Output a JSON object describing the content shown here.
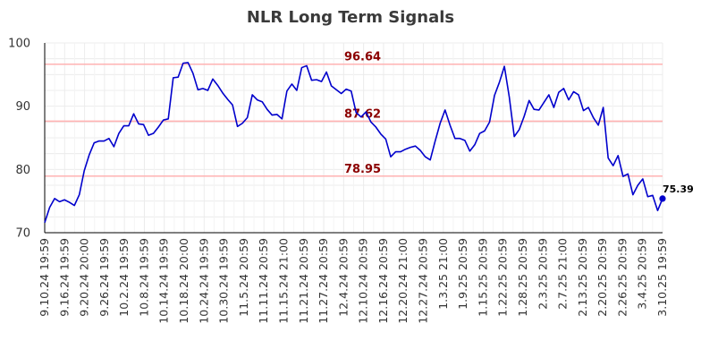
{
  "chart_data": {
    "type": "line",
    "title": "NLR Long Term Signals",
    "xlabel": "",
    "ylabel": "",
    "ylim": [
      70,
      100
    ],
    "yticks": [
      70,
      80,
      90,
      100
    ],
    "grid": true,
    "line_color": "#0000cc",
    "reference_color": "#ffb3b3",
    "reference_label_color": "#8b0000",
    "reference_lines": [
      {
        "value": 96.64,
        "label": "96.64"
      },
      {
        "value": 87.62,
        "label": "87.62"
      },
      {
        "value": 78.95,
        "label": "78.95"
      }
    ],
    "last_value_label": "75.39",
    "x_tick_labels": [
      "9.10.24 19:59",
      "9.16.24 19:59",
      "9.20.24 20:00",
      "9.26.24 19:59",
      "10.2.24 19:59",
      "10.8.24 19:59",
      "10.14.24 19:59",
      "10.18.24 20:00",
      "10.24.24 19:59",
      "10.30.24 19:59",
      "11.5.24 20:59",
      "11.11.24 20:59",
      "11.15.24 21:00",
      "11.21.24 20:59",
      "11.27.24 20:59",
      "12.4.24 20:59",
      "12.10.24 20:59",
      "12.16.24 20:59",
      "12.20.24 21:00",
      "12.27.24 20:59",
      "1.3.25 21:00",
      "1.9.25 20:59",
      "1.15.25 20:59",
      "1.22.25 20:59",
      "1.28.25 20:59",
      "2.3.25 20:59",
      "2.7.25 21:00",
      "2.13.25 20:59",
      "2.20.25 20:59",
      "2.26.25 20:59",
      "3.4.25 20:59",
      "3.10.25 19:59"
    ],
    "series": [
      {
        "values": [
          71.6,
          74.0,
          75.4,
          74.9,
          75.2,
          74.8,
          74.3,
          76.0,
          79.8,
          82.3,
          84.2,
          84.5,
          84.5,
          84.9,
          83.6,
          85.7,
          86.9,
          86.9,
          88.8,
          87.2,
          87.1,
          85.4,
          85.7,
          86.7,
          87.8,
          88.0,
          94.5,
          94.6,
          96.8,
          96.9,
          95.2,
          92.6,
          92.8,
          92.5,
          94.3,
          93.3,
          92.1,
          91.1,
          90.2,
          86.8,
          87.3,
          88.2,
          91.8,
          91.0,
          90.7,
          89.5,
          88.6,
          88.7,
          88.0,
          92.4,
          93.5,
          92.5,
          96.1,
          96.4,
          94.1,
          94.2,
          93.9,
          95.4,
          93.2,
          92.6,
          92.0,
          92.7,
          92.4,
          89.0,
          88.3,
          89.1,
          87.5,
          86.7,
          85.6,
          84.8,
          82.0,
          82.8,
          82.8,
          83.2,
          83.5,
          83.7,
          83.0,
          82.0,
          81.5,
          84.5,
          87.3,
          89.4,
          87.0,
          84.9,
          84.9,
          84.6,
          82.9,
          83.9,
          85.7,
          86.1,
          87.5,
          91.7,
          93.8,
          96.3,
          91.4,
          85.2,
          86.3,
          88.4,
          90.9,
          89.5,
          89.4,
          90.6,
          91.8,
          89.8,
          92.2,
          92.8,
          91.0,
          92.3,
          91.8,
          89.3,
          89.8,
          88.2,
          87.0,
          89.8,
          81.8,
          80.6,
          82.2,
          78.9,
          79.3,
          76.0,
          77.5,
          78.5,
          75.7,
          75.9,
          73.5,
          75.39
        ]
      }
    ]
  }
}
